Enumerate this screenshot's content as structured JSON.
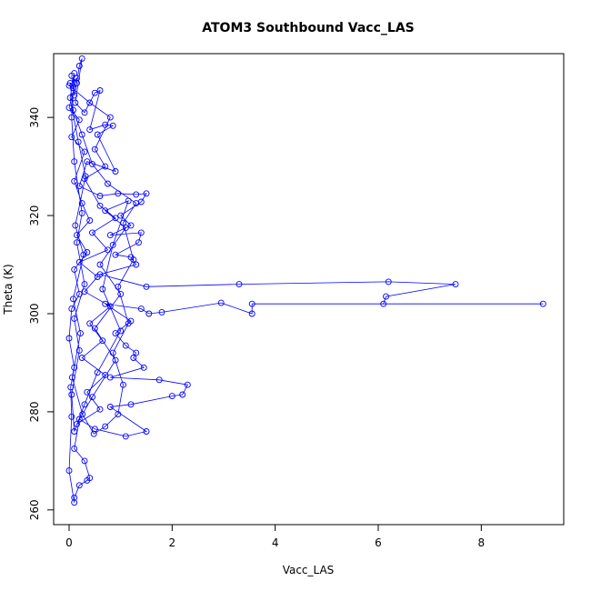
{
  "colors": {
    "series": "#0000ff",
    "axis": "#000000",
    "background": "#ffffff"
  },
  "chart_data": {
    "type": "scatter",
    "title": "ATOM3 Southbound Vacc_LAS",
    "xlabel": "Vacc_LAS",
    "ylabel": "Theta (K)",
    "xlim": [
      -0.3,
      9.6
    ],
    "ylim": [
      257,
      353
    ],
    "xticks": [
      0,
      2,
      4,
      6,
      8
    ],
    "xtick_labels": [
      "0",
      "2",
      "4",
      "6",
      "8"
    ],
    "yticks": [
      260,
      280,
      300,
      320,
      340
    ],
    "ytick_labels": [
      "260",
      "280",
      "300",
      "320",
      "340"
    ],
    "grid": false,
    "legend": "none",
    "marker": "open-circle",
    "connected": true,
    "series": [
      {
        "points": [
          [
            0.05,
            348.5
          ],
          [
            0.08,
            346.0
          ],
          [
            0.1,
            344.5
          ],
          [
            0.15,
            347.0
          ],
          [
            0.2,
            350.5
          ],
          [
            0.25,
            352.0
          ],
          [
            0.12,
            343.0
          ],
          [
            0.3,
            341.0
          ],
          [
            0.5,
            345.0
          ],
          [
            0.6,
            345.5
          ],
          [
            0.4,
            337.5
          ],
          [
            0.7,
            338.5
          ],
          [
            0.85,
            338.3
          ],
          [
            0.55,
            336.5
          ],
          [
            0.9,
            329.0
          ],
          [
            0.35,
            331.0
          ],
          [
            0.2,
            326.0
          ],
          [
            0.6,
            324.0
          ],
          [
            0.95,
            324.5
          ],
          [
            1.3,
            324.3
          ],
          [
            1.5,
            324.5
          ],
          [
            1.4,
            322.8
          ],
          [
            1.0,
            320.0
          ],
          [
            1.2,
            318.0
          ],
          [
            0.8,
            316.0
          ],
          [
            1.4,
            316.5
          ],
          [
            1.35,
            314.5
          ],
          [
            0.9,
            312.0
          ],
          [
            1.2,
            311.5
          ],
          [
            1.3,
            310.0
          ],
          [
            0.6,
            308.0
          ],
          [
            1.5,
            305.5
          ],
          [
            3.3,
            306.0
          ],
          [
            6.2,
            306.5
          ],
          [
            7.5,
            306.0
          ],
          [
            6.15,
            303.5
          ],
          [
            6.1,
            302.0
          ],
          [
            9.2,
            302.0
          ],
          [
            3.55,
            302.0
          ],
          [
            3.55,
            300.0
          ],
          [
            2.95,
            302.2
          ],
          [
            1.8,
            300.3
          ],
          [
            1.55,
            300.0
          ],
          [
            1.4,
            301.0
          ],
          [
            0.7,
            302.0
          ],
          [
            1.2,
            298.5
          ],
          [
            0.9,
            296.0
          ],
          [
            1.1,
            293.5
          ],
          [
            1.3,
            292.0
          ],
          [
            1.25,
            291.0
          ],
          [
            1.45,
            289.0
          ],
          [
            0.8,
            287.0
          ],
          [
            1.75,
            286.5
          ],
          [
            2.3,
            285.5
          ],
          [
            2.2,
            283.5
          ],
          [
            2.0,
            283.2
          ],
          [
            1.2,
            281.5
          ],
          [
            0.8,
            281.0
          ],
          [
            1.5,
            276.0
          ],
          [
            1.1,
            275.0
          ],
          [
            0.5,
            276.5
          ],
          [
            0.2,
            278.5
          ],
          [
            0.1,
            272.5
          ],
          [
            0.3,
            270.0
          ],
          [
            0.4,
            266.5
          ],
          [
            0.35,
            266.0
          ],
          [
            0.2,
            265.0
          ],
          [
            0.1,
            262.5
          ],
          [
            0.1,
            261.5
          ],
          [
            0.0,
            268.0
          ],
          [
            0.05,
            279.0
          ],
          [
            0.03,
            285.0
          ],
          [
            0.1,
            289.0
          ],
          [
            0.0,
            295.0
          ],
          [
            0.05,
            301.0
          ],
          [
            0.2,
            304.0
          ],
          [
            0.1,
            309.0
          ],
          [
            0.35,
            312.5
          ],
          [
            0.15,
            316.0
          ],
          [
            0.4,
            319.0
          ],
          [
            0.25,
            322.5
          ],
          [
            0.1,
            327.0
          ],
          [
            0.3,
            333.0
          ],
          [
            0.05,
            336.0
          ],
          [
            0.2,
            339.5
          ],
          [
            0.0,
            342.0
          ],
          [
            0.15,
            348.0
          ],
          [
            0.0,
            346.5
          ],
          [
            0.4,
            343.0
          ],
          [
            0.8,
            340.0
          ],
          [
            0.5,
            333.5
          ],
          [
            0.7,
            330.0
          ],
          [
            0.3,
            327.5
          ],
          [
            0.6,
            322.0
          ],
          [
            0.9,
            319.5
          ],
          [
            0.45,
            316.5
          ],
          [
            0.75,
            313.0
          ],
          [
            0.2,
            310.5
          ],
          [
            0.55,
            307.5
          ],
          [
            0.3,
            304.5
          ],
          [
            0.8,
            301.5
          ],
          [
            0.4,
            298.0
          ],
          [
            0.65,
            294.5
          ],
          [
            0.25,
            291.0
          ],
          [
            0.7,
            287.5
          ],
          [
            0.35,
            284.0
          ],
          [
            0.6,
            280.5
          ],
          [
            0.15,
            277.5
          ],
          [
            0.45,
            283.0
          ],
          [
            0.9,
            290.5
          ],
          [
            0.5,
            297.0
          ],
          [
            1.0,
            304.0
          ],
          [
            0.6,
            310.0
          ],
          [
            1.1,
            317.5
          ],
          [
            0.7,
            321.0
          ],
          [
            1.15,
            323.0
          ],
          [
            0.85,
            314.0
          ],
          [
            0.65,
            305.0
          ],
          [
            1.0,
            296.5
          ],
          [
            0.55,
            288.0
          ],
          [
            0.3,
            281.5
          ],
          [
            0.1,
            276.0
          ],
          [
            0.05,
            283.5
          ],
          [
            0.2,
            292.5
          ],
          [
            0.1,
            299.0
          ],
          [
            0.3,
            306.0
          ],
          [
            0.15,
            314.5
          ],
          [
            0.25,
            320.5
          ],
          [
            0.1,
            331.0
          ],
          [
            0.05,
            340.0
          ],
          [
            0.1,
            349.0
          ],
          [
            0.02,
            344.0
          ],
          [
            0.18,
            335.0
          ],
          [
            0.32,
            328.0
          ],
          [
            0.12,
            318.0
          ],
          [
            0.28,
            312.0
          ],
          [
            0.08,
            303.0
          ],
          [
            0.22,
            296.0
          ],
          [
            0.06,
            287.0
          ],
          [
            0.26,
            279.5
          ],
          [
            0.48,
            275.5
          ],
          [
            0.7,
            277.0
          ],
          [
            0.95,
            279.5
          ],
          [
            1.05,
            285.5
          ],
          [
            0.85,
            292.0
          ],
          [
            1.15,
            298.0
          ],
          [
            0.95,
            305.5
          ],
          [
            1.25,
            311.0
          ],
          [
            1.05,
            318.5
          ],
          [
            1.3,
            322.5
          ],
          [
            0.75,
            326.5
          ],
          [
            0.45,
            330.5
          ],
          [
            0.25,
            336.5
          ],
          [
            0.08,
            341.5
          ],
          [
            0.02,
            347.0
          ]
        ]
      }
    ]
  }
}
